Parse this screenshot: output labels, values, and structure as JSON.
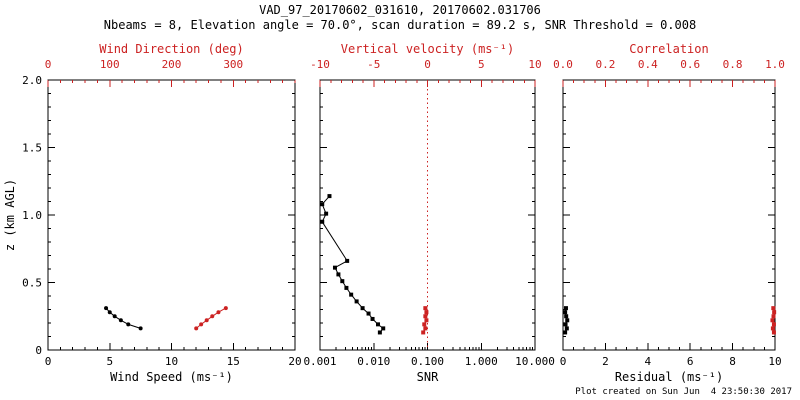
{
  "header": {
    "title_line1": "VAD_97_20170602_031610, 20170602.031706",
    "title_line2": "Nbeams = 8, Elevation angle = 70.0°, scan duration = 89.2 s, SNR Threshold = 0.008"
  },
  "footer": {
    "created_text": "Plot created on Sun Jun  4 23:50:30 2017"
  },
  "colors": {
    "red": "#cc2222",
    "black": "#000000",
    "background": "#ffffff"
  },
  "y_axis": {
    "label": "z (km AGL)",
    "range": [
      0,
      2.0
    ],
    "tick_values": [
      0,
      0.5,
      1.0,
      1.5,
      2.0
    ],
    "tick_labels": [
      "0",
      "0.5",
      "1.0",
      "1.5",
      "2.0"
    ],
    "minor_step": 0.1
  },
  "chart_data": [
    {
      "type": "line",
      "bottom_axis": {
        "label": "Wind Speed (ms⁻¹)",
        "range": [
          0,
          20
        ],
        "tick_values": [
          0,
          5,
          10,
          15,
          20
        ],
        "tick_labels": [
          "0",
          "5",
          "10",
          "15",
          "20"
        ],
        "minor_step": 1
      },
      "top_axis": {
        "label": "Wind Direction (deg)",
        "range": [
          0,
          400
        ],
        "tick_values": [
          0,
          100,
          200,
          300
        ],
        "tick_labels": [
          "0",
          "100",
          "200",
          "300"
        ],
        "minor_step": 20
      },
      "series": [
        {
          "name": "wind-speed",
          "color": "black",
          "axis": "bottom",
          "marker": "circle",
          "points": [
            [
              7.5,
              0.16
            ],
            [
              6.5,
              0.19
            ],
            [
              5.9,
              0.22
            ],
            [
              5.4,
              0.25
            ],
            [
              5.0,
              0.28
            ],
            [
              4.7,
              0.31
            ]
          ]
        },
        {
          "name": "wind-direction",
          "color": "red",
          "axis": "top",
          "marker": "circle",
          "points": [
            [
              240,
              0.16
            ],
            [
              248,
              0.19
            ],
            [
              257,
              0.22
            ],
            [
              266,
              0.25
            ],
            [
              276,
              0.28
            ],
            [
              288,
              0.31
            ]
          ]
        }
      ]
    },
    {
      "type": "line",
      "bottom_axis": {
        "label": "SNR",
        "log": true,
        "range": [
          0.001,
          10
        ],
        "tick_values": [
          0.001,
          0.01,
          0.1,
          1,
          10
        ],
        "tick_labels": [
          "0.001",
          "0.010",
          "0.100",
          "1.000",
          "10.000"
        ]
      },
      "top_axis": {
        "label": "Vertical velocity (ms⁻¹)",
        "range": [
          -10,
          10
        ],
        "tick_values": [
          -10,
          -5,
          0,
          5,
          10
        ],
        "tick_labels": [
          "-10",
          "-5",
          "0",
          "5",
          "10"
        ],
        "minor_step": 1
      },
      "reference_line": {
        "axis": "top",
        "value": 0,
        "color": "red",
        "style": "dotted"
      },
      "series": [
        {
          "name": "snr",
          "color": "black",
          "axis": "bottom",
          "marker": "square",
          "points": [
            [
              0.0015,
              1.14
            ],
            [
              0.0011,
              1.08
            ],
            [
              0.0013,
              1.01
            ],
            [
              0.0011,
              0.95
            ],
            [
              0.0032,
              0.66
            ],
            [
              0.0019,
              0.61
            ],
            [
              0.0022,
              0.56
            ],
            [
              0.0026,
              0.51
            ],
            [
              0.0031,
              0.46
            ],
            [
              0.0038,
              0.41
            ],
            [
              0.0048,
              0.36
            ],
            [
              0.0062,
              0.31
            ],
            [
              0.008,
              0.27
            ],
            [
              0.0095,
              0.23
            ],
            [
              0.012,
              0.19
            ],
            [
              0.015,
              0.16
            ],
            [
              0.013,
              0.13
            ]
          ]
        },
        {
          "name": "vertical-velocity",
          "color": "red",
          "axis": "top",
          "marker": "square",
          "points": [
            [
              -0.4,
              0.13
            ],
            [
              -0.2,
              0.16
            ],
            [
              -0.3,
              0.19
            ],
            [
              -0.1,
              0.22
            ],
            [
              -0.2,
              0.25
            ],
            [
              -0.1,
              0.28
            ],
            [
              -0.2,
              0.31
            ]
          ]
        }
      ]
    },
    {
      "type": "line",
      "bottom_axis": {
        "label": "Residual (ms⁻¹)",
        "range": [
          0,
          10
        ],
        "tick_values": [
          0,
          2,
          4,
          6,
          8,
          10
        ],
        "tick_labels": [
          "0",
          "2",
          "4",
          "6",
          "8",
          "10"
        ],
        "minor_step": 0.5
      },
      "top_axis": {
        "label": "Correlation",
        "range": [
          0,
          1
        ],
        "tick_values": [
          0,
          0.2,
          0.4,
          0.6,
          0.8,
          1.0
        ],
        "tick_labels": [
          "0.0",
          "0.2",
          "0.4",
          "0.6",
          "0.8",
          "1.0"
        ],
        "minor_step": 0.05
      },
      "series": [
        {
          "name": "residual",
          "color": "black",
          "axis": "bottom",
          "marker": "square",
          "points": [
            [
              0.1,
              0.13
            ],
            [
              0.18,
              0.16
            ],
            [
              0.12,
              0.19
            ],
            [
              0.2,
              0.22
            ],
            [
              0.15,
              0.25
            ],
            [
              0.1,
              0.28
            ],
            [
              0.14,
              0.31
            ]
          ]
        },
        {
          "name": "correlation",
          "color": "red",
          "axis": "top",
          "marker": "square",
          "points": [
            [
              0.995,
              0.13
            ],
            [
              0.99,
              0.16
            ],
            [
              0.995,
              0.19
            ],
            [
              0.988,
              0.22
            ],
            [
              0.993,
              0.25
            ],
            [
              0.996,
              0.28
            ],
            [
              0.992,
              0.31
            ]
          ]
        }
      ]
    }
  ]
}
